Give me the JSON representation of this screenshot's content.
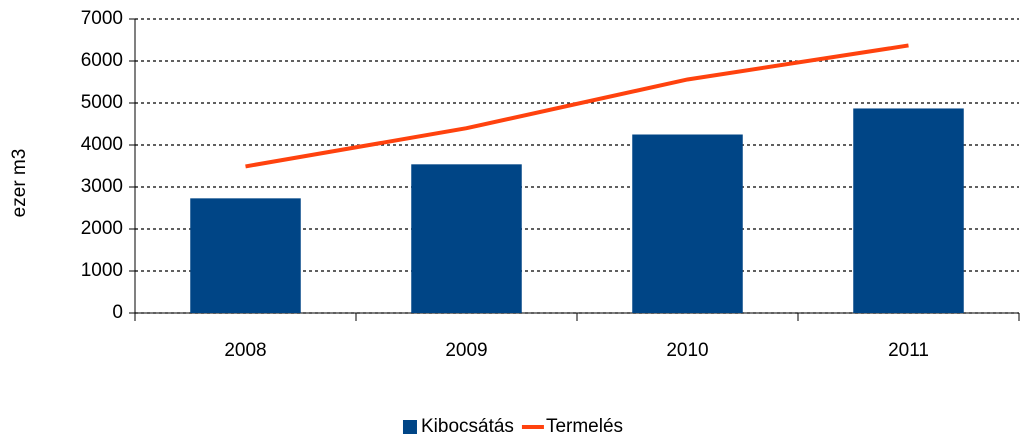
{
  "chart_data": {
    "type": "bar",
    "categories": [
      "2008",
      "2009",
      "2010",
      "2011"
    ],
    "series": [
      {
        "name": "Kibocsátás",
        "type": "bar",
        "color": "#004586",
        "values": [
          2730,
          3540,
          4250,
          4870
        ]
      },
      {
        "name": "Termelés",
        "type": "line",
        "color": "#ff420e",
        "values": [
          3490,
          4400,
          5560,
          6370
        ]
      }
    ],
    "ylabel": "ezer m3",
    "ylim": [
      0,
      7000
    ],
    "yticks": [
      0,
      1000,
      2000,
      3000,
      4000,
      5000,
      6000,
      7000
    ],
    "grid": true,
    "legend": "bottom"
  }
}
